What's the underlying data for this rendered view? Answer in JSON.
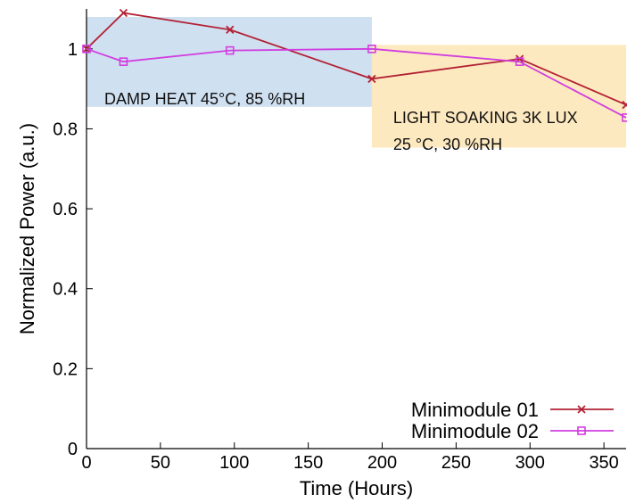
{
  "chart_data": {
    "type": "line",
    "xlabel": "Time (Hours)",
    "ylabel": "Normalized Power (a.u.)",
    "xlim": [
      0,
      365
    ],
    "ylim": [
      0,
      1.1
    ],
    "xticks": [
      0,
      50,
      100,
      150,
      200,
      250,
      300,
      350
    ],
    "yticks": [
      0,
      0.2,
      0.4,
      0.6,
      0.8,
      1
    ],
    "xtick_labels": [
      "0",
      "50",
      "100",
      "150",
      "200",
      "250",
      "300",
      "350"
    ],
    "ytick_labels": [
      "0",
      "0.2",
      "0.4",
      "0.6",
      "0.8",
      "1"
    ],
    "grid": false,
    "legend_position": "bottom-right",
    "regions": [
      {
        "label_lines": [
          "DAMP HEAT 45°C, 85 %RH"
        ],
        "x_range": [
          0,
          193
        ],
        "y_range": [
          0.855,
          1.08
        ],
        "color": "#cfe0f1"
      },
      {
        "label_lines": [
          "LIGHT SOAKING 3K LUX",
          "25 °C, 30 %RH"
        ],
        "x_range": [
          193,
          365
        ],
        "y_range": [
          0.753,
          1.01
        ],
        "color": "#fde9bf"
      }
    ],
    "series": [
      {
        "name": "Minimodule 01",
        "color": "#b22234",
        "marker": "x",
        "x": [
          0,
          25,
          97,
          193,
          293,
          365
        ],
        "y": [
          1.0,
          1.09,
          1.048,
          0.925,
          0.975,
          0.86
        ]
      },
      {
        "name": "Minimodule 02",
        "color": "#d13ee0",
        "marker": "square",
        "x": [
          0,
          25,
          97,
          193,
          293,
          365
        ],
        "y": [
          1.0,
          0.968,
          0.996,
          1.0,
          0.968,
          0.828
        ]
      }
    ]
  }
}
